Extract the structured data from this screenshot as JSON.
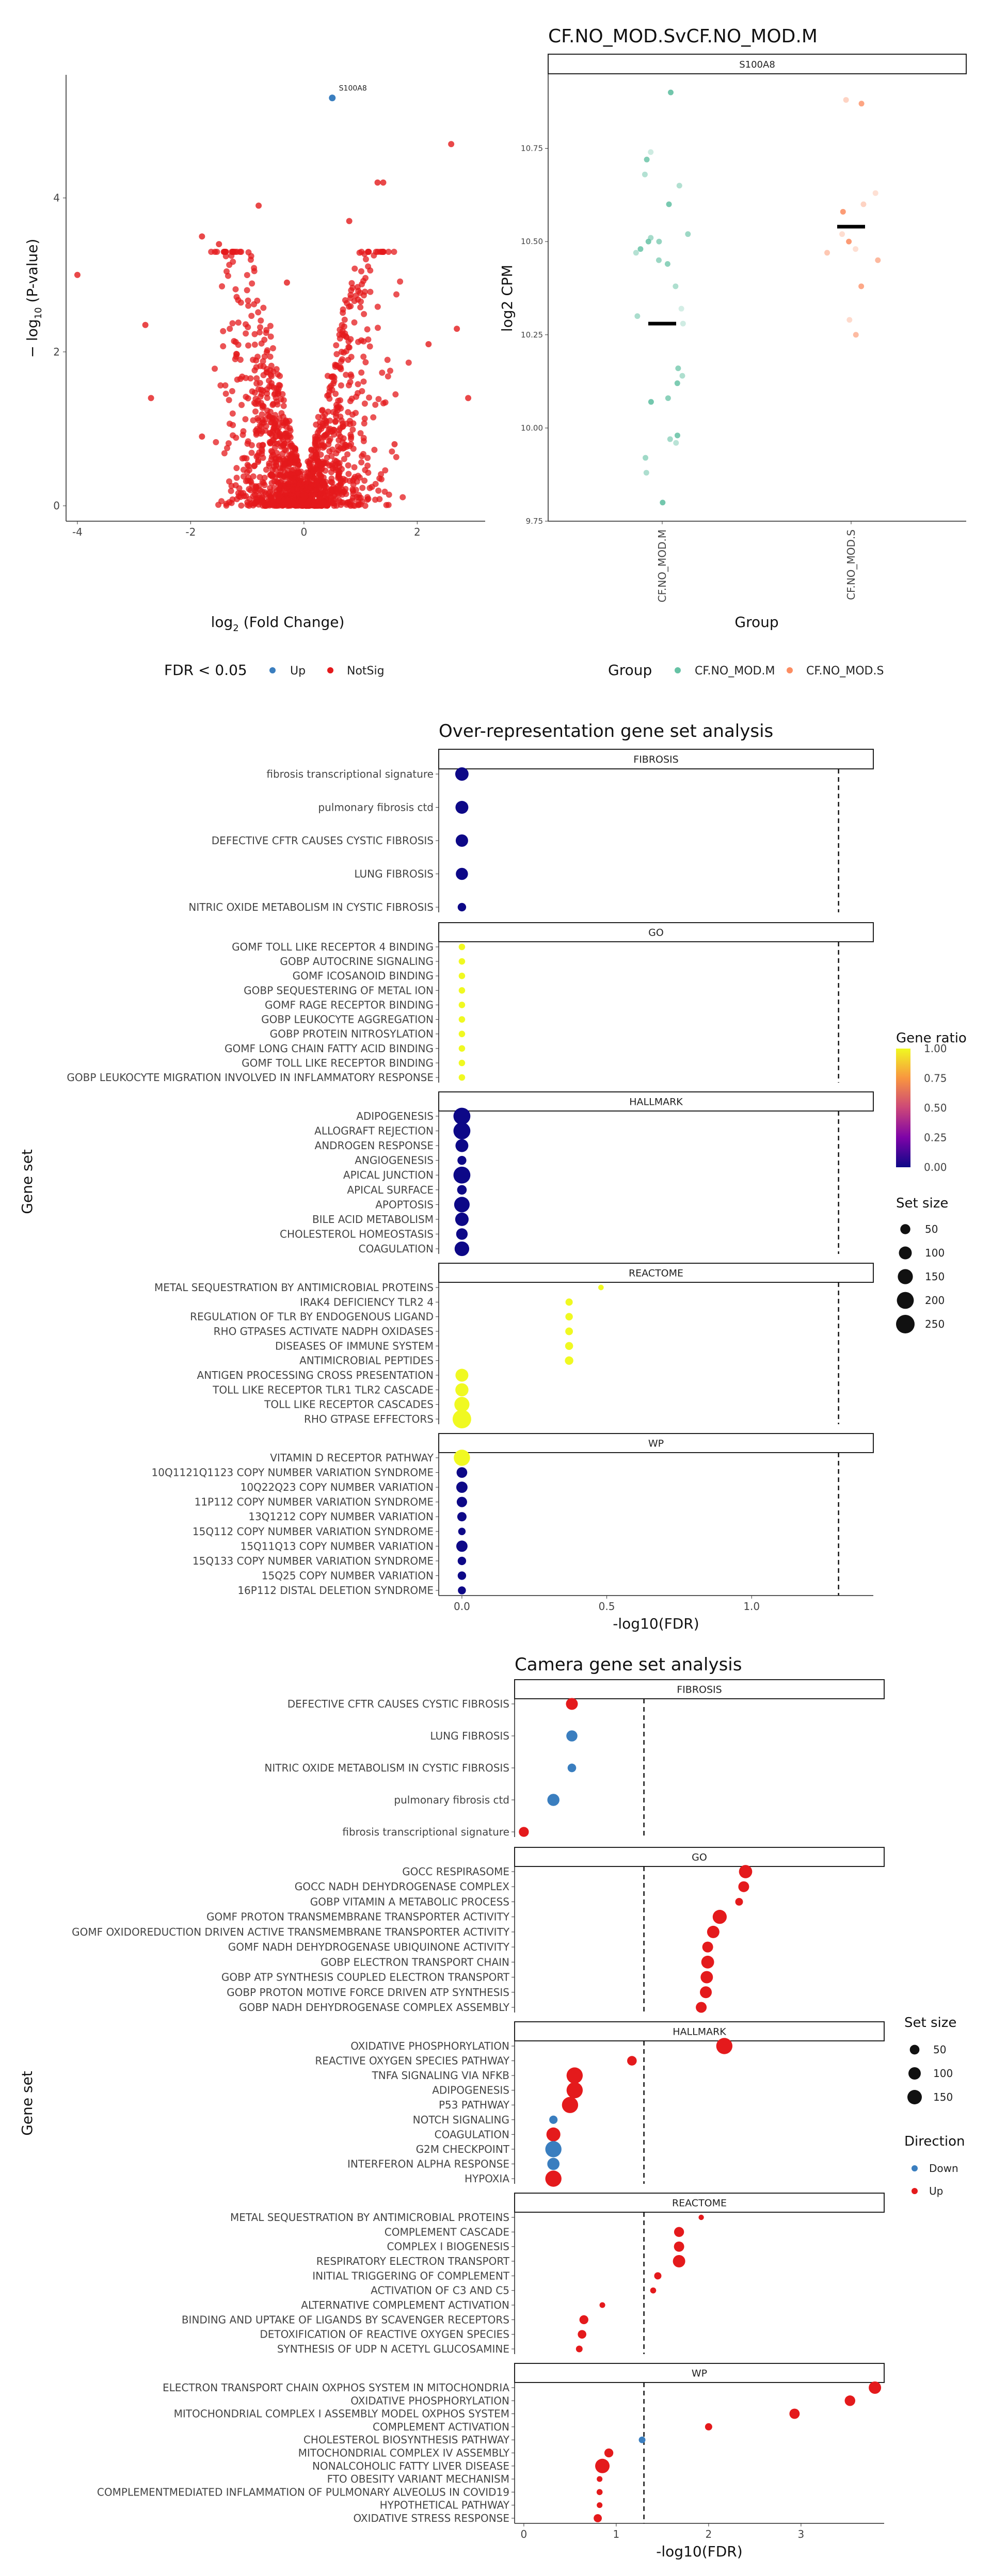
{
  "volcano": {
    "type": "scatter",
    "highlight_label": "S100A8",
    "xlabel": "log",
    "xlabel_sub": "2",
    "xlabel_rest": " (Fold Change)",
    "ylabel_pre": "− log",
    "ylabel_sub": "10",
    "ylabel_rest": " (P-value)",
    "xlim": [
      -4.2,
      3.2
    ],
    "ylim": [
      -0.2,
      5.6
    ],
    "xticks": [
      "-4",
      "-2",
      "0",
      "2"
    ],
    "xtick_values": [
      -4,
      -2,
      0,
      2
    ],
    "yticks": [
      "0",
      "2",
      "4"
    ],
    "ytick_values": [
      0,
      2,
      4
    ],
    "legend_title": "FDR < 0.05",
    "legend_items": [
      {
        "label": "Up",
        "color": "#3a7ebf"
      },
      {
        "label": "NotSig",
        "color": "#e41a1c"
      }
    ],
    "highlight_point": {
      "x": 0.5,
      "y": 5.3
    },
    "outliers": [
      [
        -4.0,
        3.0
      ],
      [
        -2.8,
        2.35
      ],
      [
        -2.7,
        1.4
      ],
      [
        -1.8,
        3.5
      ],
      [
        -1.5,
        3.4
      ],
      [
        -0.8,
        3.9
      ],
      [
        2.6,
        4.7
      ],
      [
        2.9,
        1.4
      ],
      [
        2.7,
        2.3
      ],
      [
        1.3,
        4.2
      ],
      [
        1.4,
        4.2
      ],
      [
        0.8,
        3.7
      ],
      [
        2.2,
        2.1
      ],
      [
        -0.3,
        2.9
      ],
      [
        1.6,
        0.8
      ],
      [
        -1.8,
        0.9
      ]
    ]
  },
  "stripplot": {
    "title": "CF.NO_MOD.SvCF.NO_MOD.M",
    "facet": "S100A8",
    "ylabel": "log2 CPM",
    "xlabel": "Group",
    "categories": [
      "CF.NO_MOD.M",
      "CF.NO_MOD.S"
    ],
    "ylim": [
      9.75,
      10.95
    ],
    "yticks": [
      "9.75",
      "10.00",
      "10.25",
      "10.50",
      "10.75"
    ],
    "ytick_values": [
      9.75,
      10.0,
      10.25,
      10.5,
      10.75
    ],
    "means": [
      10.28,
      10.54
    ],
    "legend_title": "Group",
    "legend_items": [
      {
        "label": "CF.NO_MOD.M",
        "color": "#66c2a5"
      },
      {
        "label": "CF.NO_MOD.S",
        "color": "#fc8d62"
      }
    ],
    "points_M": [
      10.9,
      10.74,
      10.72,
      10.68,
      10.65,
      10.6,
      10.52,
      10.51,
      10.5,
      10.5,
      10.48,
      10.47,
      10.45,
      10.44,
      10.38,
      10.32,
      10.3,
      10.28,
      10.16,
      10.14,
      10.12,
      10.08,
      10.07,
      9.98,
      9.97,
      9.96,
      9.92,
      9.88,
      9.8
    ],
    "points_S": [
      10.88,
      10.87,
      10.63,
      10.6,
      10.58,
      10.52,
      10.5,
      10.48,
      10.47,
      10.45,
      10.38,
      10.29,
      10.25
    ]
  },
  "ora": {
    "title": "Over-representation gene set analysis",
    "xlabel": "-log10(FDR)",
    "ylabel": "Gene set",
    "xlim": [
      -0.08,
      1.42
    ],
    "xticks": [
      "0.0",
      "0.5",
      "1.0"
    ],
    "xtick_values": [
      0,
      0.5,
      1.0
    ],
    "threshold": 1.3,
    "color_legend_title": "Gene ratio",
    "color_ticks": [
      "1.00",
      "0.75",
      "0.50",
      "0.25",
      "0.00"
    ],
    "size_legend_title": "Set size",
    "size_ticks": [
      "50",
      "100",
      "150",
      "200",
      "250"
    ],
    "facets": [
      {
        "name": "FIBROSIS",
        "rows": [
          {
            "label": "fibrosis transcriptional signature",
            "x": 0.0,
            "size": 110,
            "ratio": 0.0
          },
          {
            "label": "pulmonary fibrosis ctd",
            "x": 0.0,
            "size": 100,
            "ratio": 0.0
          },
          {
            "label": "DEFECTIVE CFTR CAUSES CYSTIC FIBROSIS",
            "x": 0.0,
            "size": 90,
            "ratio": 0.0
          },
          {
            "label": "LUNG FIBROSIS",
            "x": 0.0,
            "size": 85,
            "ratio": 0.0
          },
          {
            "label": "NITRIC OXIDE METABOLISM IN CYSTIC FIBROSIS",
            "x": 0.0,
            "size": 30,
            "ratio": 0.0
          }
        ]
      },
      {
        "name": "GO",
        "rows": [
          {
            "label": "GOMF TOLL LIKE RECEPTOR 4 BINDING",
            "x": 0.0,
            "size": 12,
            "ratio": 1.0
          },
          {
            "label": "GOBP AUTOCRINE SIGNALING",
            "x": 0.0,
            "size": 12,
            "ratio": 1.0
          },
          {
            "label": "GOMF ICOSANOID BINDING",
            "x": 0.0,
            "size": 12,
            "ratio": 1.0
          },
          {
            "label": "GOBP SEQUESTERING OF METAL ION",
            "x": 0.0,
            "size": 12,
            "ratio": 1.0
          },
          {
            "label": "GOMF RAGE RECEPTOR BINDING",
            "x": 0.0,
            "size": 12,
            "ratio": 1.0
          },
          {
            "label": "GOBP LEUKOCYTE AGGREGATION",
            "x": 0.0,
            "size": 12,
            "ratio": 1.0
          },
          {
            "label": "GOBP PROTEIN NITROSYLATION",
            "x": 0.0,
            "size": 12,
            "ratio": 1.0
          },
          {
            "label": "GOMF LONG CHAIN FATTY ACID BINDING",
            "x": 0.0,
            "size": 12,
            "ratio": 1.0
          },
          {
            "label": "GOMF TOLL LIKE RECEPTOR BINDING",
            "x": 0.0,
            "size": 12,
            "ratio": 1.0
          },
          {
            "label": "GOBP LEUKOCYTE MIGRATION INVOLVED IN INFLAMMATORY RESPONSE",
            "x": 0.0,
            "size": 12,
            "ratio": 1.0
          }
        ]
      },
      {
        "name": "HALLMARK",
        "rows": [
          {
            "label": "ADIPOGENESIS",
            "x": 0.0,
            "size": 200,
            "ratio": 0.0
          },
          {
            "label": "ALLOGRAFT REJECTION",
            "x": 0.0,
            "size": 200,
            "ratio": 0.0
          },
          {
            "label": "ANDROGEN RESPONSE",
            "x": 0.0,
            "size": 100,
            "ratio": 0.0
          },
          {
            "label": "ANGIOGENESIS",
            "x": 0.0,
            "size": 36,
            "ratio": 0.0
          },
          {
            "label": "APICAL JUNCTION",
            "x": 0.0,
            "size": 200,
            "ratio": 0.0
          },
          {
            "label": "APICAL SURFACE",
            "x": 0.0,
            "size": 44,
            "ratio": 0.0
          },
          {
            "label": "APOPTOSIS",
            "x": 0.0,
            "size": 161,
            "ratio": 0.0
          },
          {
            "label": "BILE ACID METABOLISM",
            "x": 0.0,
            "size": 112,
            "ratio": 0.0
          },
          {
            "label": "CHOLESTEROL HOMEOSTASIS",
            "x": 0.0,
            "size": 74,
            "ratio": 0.0
          },
          {
            "label": "COAGULATION",
            "x": 0.0,
            "size": 138,
            "ratio": 0.0
          }
        ]
      },
      {
        "name": "REACTOME",
        "rows": [
          {
            "label": "METAL SEQUESTRATION BY ANTIMICROBIAL PROTEINS",
            "x": 0.48,
            "size": 6,
            "ratio": 1.0
          },
          {
            "label": "IRAK4 DEFICIENCY TLR2 4",
            "x": 0.37,
            "size": 18,
            "ratio": 1.0
          },
          {
            "label": "REGULATION OF TLR BY ENDOGENOUS LIGAND",
            "x": 0.37,
            "size": 20,
            "ratio": 1.0
          },
          {
            "label": "RHO GTPASES ACTIVATE NADPH OXIDASES",
            "x": 0.37,
            "size": 22,
            "ratio": 1.0
          },
          {
            "label": "DISEASES OF IMMUNE SYSTEM",
            "x": 0.37,
            "size": 25,
            "ratio": 1.0
          },
          {
            "label": "ANTIMICROBIAL PEPTIDES",
            "x": 0.37,
            "size": 30,
            "ratio": 1.0
          },
          {
            "label": "ANTIGEN PROCESSING CROSS PRESENTATION",
            "x": 0.0,
            "size": 100,
            "ratio": 1.0
          },
          {
            "label": "TOLL LIKE RECEPTOR TLR1 TLR2 CASCADE",
            "x": 0.0,
            "size": 105,
            "ratio": 1.0
          },
          {
            "label": "TOLL LIKE RECEPTOR CASCADES",
            "x": 0.0,
            "size": 150,
            "ratio": 1.0
          },
          {
            "label": "RHO GTPASE EFFECTORS",
            "x": 0.0,
            "size": 250,
            "ratio": 1.0
          }
        ]
      },
      {
        "name": "WP",
        "rows": [
          {
            "label": "VITAMIN D RECEPTOR PATHWAY",
            "x": 0.0,
            "size": 180,
            "ratio": 1.0
          },
          {
            "label": "10Q1121Q1123 COPY NUMBER VARIATION SYNDROME",
            "x": 0.0,
            "size": 60,
            "ratio": 0.0
          },
          {
            "label": "10Q22Q23 COPY NUMBER VARIATION",
            "x": 0.0,
            "size": 70,
            "ratio": 0.0
          },
          {
            "label": "11P112 COPY NUMBER VARIATION SYNDROME",
            "x": 0.0,
            "size": 55,
            "ratio": 0.0
          },
          {
            "label": "13Q1212 COPY NUMBER VARIATION",
            "x": 0.0,
            "size": 40,
            "ratio": 0.0
          },
          {
            "label": "15Q112 COPY NUMBER VARIATION SYNDROME",
            "x": 0.0,
            "size": 20,
            "ratio": 0.0
          },
          {
            "label": "15Q11Q13 COPY NUMBER VARIATION",
            "x": 0.0,
            "size": 70,
            "ratio": 0.0
          },
          {
            "label": "15Q133 COPY NUMBER VARIATION SYNDROME",
            "x": 0.0,
            "size": 30,
            "ratio": 0.0
          },
          {
            "label": "15Q25 COPY NUMBER VARIATION",
            "x": 0.0,
            "size": 30,
            "ratio": 0.0
          },
          {
            "label": "16P112 DISTAL DELETION SYNDROME",
            "x": 0.0,
            "size": 25,
            "ratio": 0.0
          }
        ]
      }
    ]
  },
  "camera": {
    "title": "Camera gene set analysis",
    "xlabel": "-log10(FDR)",
    "ylabel": "Gene set",
    "xlim": [
      -0.1,
      3.9
    ],
    "xticks": [
      "0",
      "1",
      "2",
      "3"
    ],
    "xtick_values": [
      0,
      1,
      2,
      3
    ],
    "threshold": 1.3,
    "size_legend_title": "Set size",
    "size_ticks": [
      "50",
      "100",
      "150"
    ],
    "direction_legend_title": "Direction",
    "direction_items": [
      {
        "label": "Down",
        "color": "#3a7ebf"
      },
      {
        "label": "Up",
        "color": "#e41a1c"
      }
    ],
    "facets": [
      {
        "name": "FIBROSIS",
        "rows": [
          {
            "label": "DEFECTIVE CFTR CAUSES CYSTIC FIBROSIS",
            "x": 0.52,
            "size": 90,
            "dir": "Up"
          },
          {
            "label": "LUNG FIBROSIS",
            "x": 0.52,
            "size": 75,
            "dir": "Down"
          },
          {
            "label": "NITRIC OXIDE METABOLISM IN CYSTIC FIBROSIS",
            "x": 0.52,
            "size": 35,
            "dir": "Down"
          },
          {
            "label": "pulmonary fibrosis ctd",
            "x": 0.32,
            "size": 95,
            "dir": "Down"
          },
          {
            "label": "fibrosis transcriptional signature",
            "x": 0.0,
            "size": 55,
            "dir": "Up"
          }
        ]
      },
      {
        "name": "GO",
        "rows": [
          {
            "label": "GOCC RESPIRASOME",
            "x": 2.4,
            "size": 120,
            "dir": "Up"
          },
          {
            "label": "GOCC NADH DEHYDROGENASE COMPLEX",
            "x": 2.38,
            "size": 70,
            "dir": "Up"
          },
          {
            "label": "GOBP VITAMIN A METABOLIC PROCESS",
            "x": 2.33,
            "size": 25,
            "dir": "Up"
          },
          {
            "label": "GOMF PROTON TRANSMEMBRANE TRANSPORTER ACTIVITY",
            "x": 2.12,
            "size": 140,
            "dir": "Up"
          },
          {
            "label": "GOMF OXIDOREDUCTION DRIVEN ACTIVE TRANSMEMBRANE TRANSPORTER ACTIVITY",
            "x": 2.05,
            "size": 100,
            "dir": "Up"
          },
          {
            "label": "GOMF NADH DEHYDROGENASE UBIQUINONE ACTIVITY",
            "x": 1.99,
            "size": 70,
            "dir": "Up"
          },
          {
            "label": "GOBP ELECTRON TRANSPORT CHAIN",
            "x": 1.99,
            "size": 110,
            "dir": "Up"
          },
          {
            "label": "GOBP ATP SYNTHESIS COUPLED ELECTRON TRANSPORT",
            "x": 1.98,
            "size": 100,
            "dir": "Up"
          },
          {
            "label": "GOBP PROTON MOTIVE FORCE DRIVEN ATP SYNTHESIS",
            "x": 1.97,
            "size": 90,
            "dir": "Up"
          },
          {
            "label": "GOBP NADH DEHYDROGENASE COMPLEX ASSEMBLY",
            "x": 1.92,
            "size": 70,
            "dir": "Up"
          }
        ]
      },
      {
        "name": "HALLMARK",
        "rows": [
          {
            "label": "OXIDATIVE PHOSPHORYLATION",
            "x": 2.17,
            "size": 200,
            "dir": "Up"
          },
          {
            "label": "REACTIVE OXYGEN SPECIES PATHWAY",
            "x": 1.17,
            "size": 49,
            "dir": "Up"
          },
          {
            "label": "TNFA SIGNALING VIA NFKB",
            "x": 0.55,
            "size": 200,
            "dir": "Up"
          },
          {
            "label": "ADIPOGENESIS",
            "x": 0.55,
            "size": 200,
            "dir": "Up"
          },
          {
            "label": "P53 PATHWAY",
            "x": 0.5,
            "size": 200,
            "dir": "Up"
          },
          {
            "label": "NOTCH SIGNALING",
            "x": 0.32,
            "size": 32,
            "dir": "Down"
          },
          {
            "label": "COAGULATION",
            "x": 0.32,
            "size": 138,
            "dir": "Up"
          },
          {
            "label": "G2M CHECKPOINT",
            "x": 0.32,
            "size": 200,
            "dir": "Down"
          },
          {
            "label": "INTERFERON ALPHA RESPONSE",
            "x": 0.32,
            "size": 97,
            "dir": "Down"
          },
          {
            "label": "HYPOXIA",
            "x": 0.32,
            "size": 200,
            "dir": "Up"
          }
        ]
      },
      {
        "name": "REACTOME",
        "rows": [
          {
            "label": "METAL SEQUESTRATION BY ANTIMICROBIAL PROTEINS",
            "x": 1.92,
            "size": 6,
            "dir": "Up"
          },
          {
            "label": "COMPLEMENT CASCADE",
            "x": 1.68,
            "size": 55,
            "dir": "Up"
          },
          {
            "label": "COMPLEX I BIOGENESIS",
            "x": 1.68,
            "size": 60,
            "dir": "Up"
          },
          {
            "label": "RESPIRATORY ELECTRON TRANSPORT",
            "x": 1.68,
            "size": 100,
            "dir": "Up"
          },
          {
            "label": "INITIAL TRIGGERING OF COMPLEMENT",
            "x": 1.45,
            "size": 20,
            "dir": "Up"
          },
          {
            "label": "ACTIVATION OF C3 AND C5",
            "x": 1.4,
            "size": 10,
            "dir": "Up"
          },
          {
            "label": "ALTERNATIVE COMPLEMENT ACTIVATION",
            "x": 0.85,
            "size": 8,
            "dir": "Up"
          },
          {
            "label": "BINDING AND UPTAKE OF LIGANDS BY SCAVENGER RECEPTORS",
            "x": 0.65,
            "size": 40,
            "dir": "Up"
          },
          {
            "label": "DETOXIFICATION OF REACTIVE OXYGEN SPECIES",
            "x": 0.63,
            "size": 35,
            "dir": "Up"
          },
          {
            "label": "SYNTHESIS OF UDP N ACETYL GLUCOSAMINE",
            "x": 0.6,
            "size": 15,
            "dir": "Up"
          }
        ]
      },
      {
        "name": "WP",
        "rows": [
          {
            "label": "ELECTRON TRANSPORT CHAIN OXPHOS SYSTEM IN MITOCHONDRIA",
            "x": 3.8,
            "size": 100,
            "dir": "Up"
          },
          {
            "label": "OXIDATIVE PHOSPHORYLATION",
            "x": 3.53,
            "size": 65,
            "dir": "Up"
          },
          {
            "label": "MITOCHONDRIAL COMPLEX I ASSEMBLY MODEL OXPHOS SYSTEM",
            "x": 2.93,
            "size": 60,
            "dir": "Up"
          },
          {
            "label": "COMPLEMENT ACTIVATION",
            "x": 2.0,
            "size": 20,
            "dir": "Up"
          },
          {
            "label": "CHOLESTEROL BIOSYNTHESIS PATHWAY",
            "x": 1.28,
            "size": 15,
            "dir": "Down"
          },
          {
            "label": "MITOCHONDRIAL COMPLEX IV ASSEMBLY",
            "x": 0.92,
            "size": 40,
            "dir": "Up"
          },
          {
            "label": "NONALCOHOLIC FATTY LIVER DISEASE",
            "x": 0.85,
            "size": 150,
            "dir": "Up"
          },
          {
            "label": "FTO OBESITY VARIANT MECHANISM",
            "x": 0.82,
            "size": 8,
            "dir": "Up"
          },
          {
            "label": "COMPLEMENTMEDIATED INFLAMMATION OF PULMONARY ALVEOLUS IN COVID19",
            "x": 0.82,
            "size": 10,
            "dir": "Up"
          },
          {
            "label": "HYPOTHETICAL PATHWAY",
            "x": 0.82,
            "size": 8,
            "dir": "Up"
          },
          {
            "label": "OXIDATIVE STRESS RESPONSE",
            "x": 0.8,
            "size": 30,
            "dir": "Up"
          }
        ]
      }
    ]
  }
}
